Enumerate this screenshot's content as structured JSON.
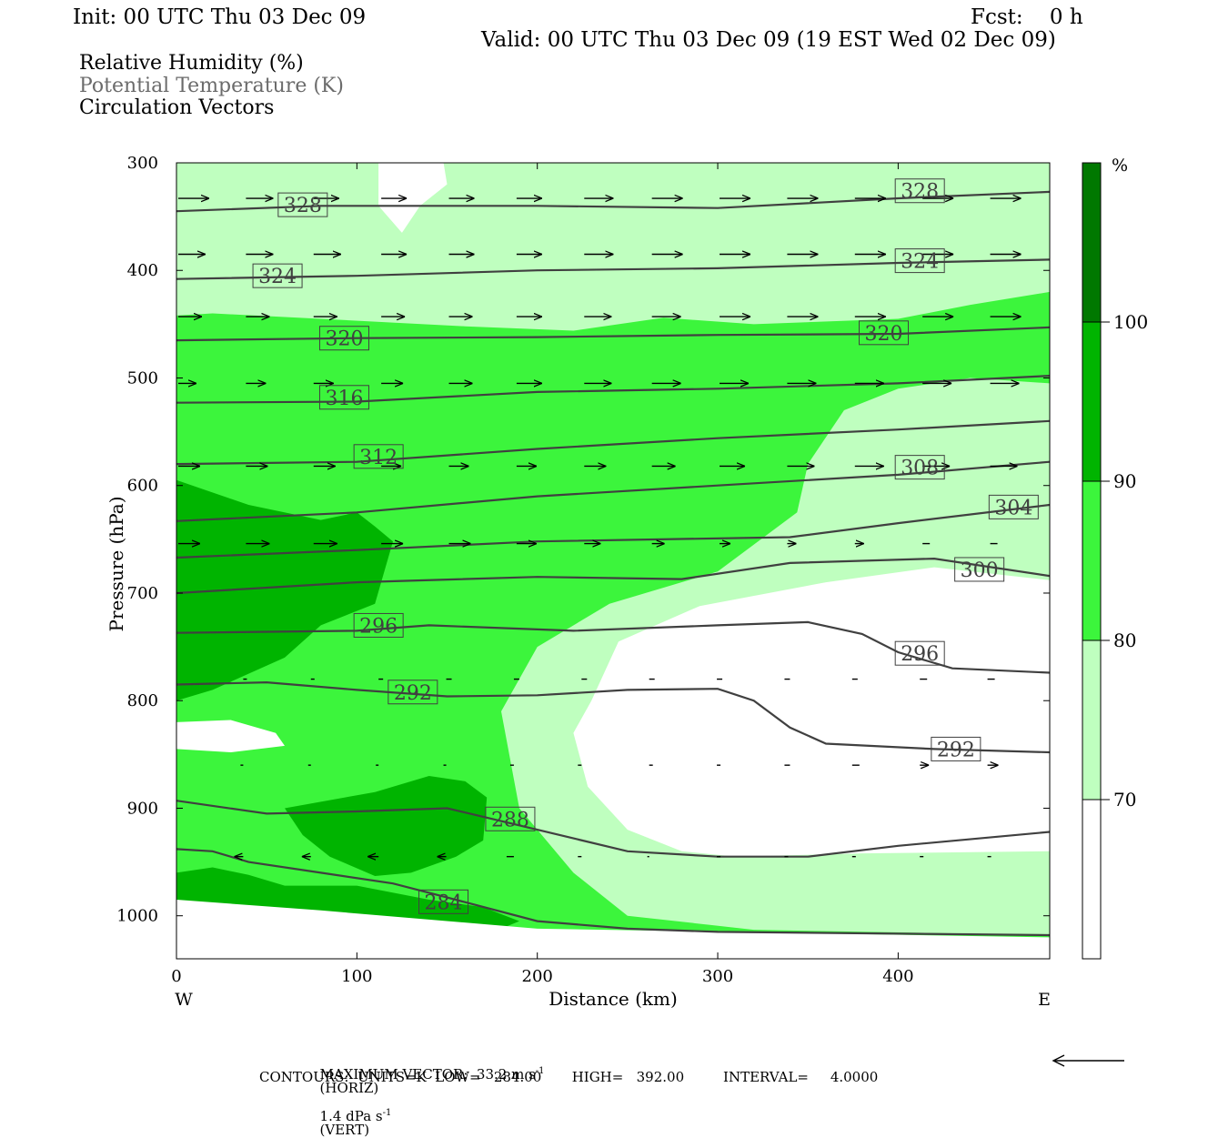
{
  "header": {
    "init": "Init: 00 UTC Thu 03 Dec 09",
    "fcst": "Fcst:    0 h",
    "valid": "Valid: 00 UTC Thu 03 Dec 09 (19 EST Wed 02 Dec 09)"
  },
  "legend_lines": [
    "Relative Humidity (%)",
    "Potential Temperature (K)",
    "Circulation Vectors"
  ],
  "footer": {
    "max_vector": "MAXIMUM VECTOR:  33.2 m s",
    "horiz": "(HORIZ)",
    "vert_val": "1.4 dPa s",
    "vert": "(VERT)",
    "exp": "-1",
    "contours": "CONTOURS:  UNITS=K  LOW=   284.00       HIGH=   392.00         INTERVAL=     4.0000"
  },
  "colors": {
    "rh_70_80": "#bfffbf",
    "rh_80_90": "#3cf53c",
    "rh_90_100": "#00b400",
    "rh_100": "#007800",
    "contour": "#404040",
    "vector": "#000000"
  },
  "chart_data": {
    "type": "heatmap",
    "xlabel": "Distance (km)",
    "ylabel": "Pressure (hPa)",
    "xlim": [
      0,
      484
    ],
    "ylim": [
      1040,
      300
    ],
    "x_ticks": [
      0,
      100,
      200,
      300,
      400
    ],
    "y_ticks": [
      300,
      400,
      500,
      600,
      700,
      800,
      900,
      1000
    ],
    "x_end_labels": {
      "left": "W",
      "right": "E"
    },
    "colorbar": {
      "unit": "%",
      "levels": [
        70,
        80,
        90,
        100
      ],
      "level_labels": [
        "70",
        "80",
        "90",
        "100"
      ]
    },
    "rh_regions": [
      {
        "level": 70,
        "points": [
          [
            0,
            300
          ],
          [
            484,
            300
          ],
          [
            484,
            1020
          ],
          [
            0,
            1020
          ]
        ]
      },
      {
        "level": 80,
        "points": [
          [
            0,
            442
          ],
          [
            20,
            440
          ],
          [
            80,
            445
          ],
          [
            160,
            452
          ],
          [
            220,
            456
          ],
          [
            270,
            444
          ],
          [
            320,
            450
          ],
          [
            400,
            445
          ],
          [
            440,
            432
          ],
          [
            484,
            420
          ],
          [
            484,
            505
          ],
          [
            440,
            500
          ],
          [
            400,
            510
          ],
          [
            370,
            530
          ],
          [
            350,
            580
          ],
          [
            344,
            625
          ],
          [
            300,
            680
          ],
          [
            240,
            710
          ],
          [
            200,
            750
          ],
          [
            180,
            810
          ],
          [
            190,
            900
          ],
          [
            220,
            960
          ],
          [
            250,
            1000
          ],
          [
            320,
            1013
          ],
          [
            484,
            1018
          ],
          [
            484,
            1030
          ],
          [
            0,
            1030
          ]
        ]
      },
      {
        "level": 90,
        "points": [
          [
            0,
            595
          ],
          [
            40,
            618
          ],
          [
            80,
            632
          ],
          [
            100,
            625
          ],
          [
            110,
            638
          ],
          [
            120,
            652
          ],
          [
            110,
            710
          ],
          [
            80,
            730
          ],
          [
            60,
            760
          ],
          [
            20,
            790
          ],
          [
            0,
            800
          ]
        ]
      },
      {
        "level": 90,
        "points": [
          [
            60,
            900
          ],
          [
            110,
            885
          ],
          [
            140,
            870
          ],
          [
            160,
            875
          ],
          [
            172,
            890
          ],
          [
            170,
            930
          ],
          [
            155,
            945
          ],
          [
            130,
            960
          ],
          [
            110,
            963
          ],
          [
            85,
            945
          ],
          [
            70,
            925
          ]
        ]
      },
      {
        "level": 90,
        "points": [
          [
            0,
            960
          ],
          [
            20,
            955
          ],
          [
            40,
            962
          ],
          [
            60,
            972
          ],
          [
            100,
            972
          ],
          [
            140,
            985
          ],
          [
            170,
            992
          ],
          [
            190,
            1005
          ],
          [
            180,
            1012
          ],
          [
            100,
            1008
          ],
          [
            40,
            1000
          ],
          [
            0,
            990
          ]
        ]
      }
    ],
    "rh_clear": [
      [
        [
          112,
          300
        ],
        [
          148,
          300
        ],
        [
          150,
          320
        ],
        [
          135,
          340
        ],
        [
          125,
          365
        ],
        [
          112,
          340
        ]
      ],
      [
        [
          0,
          820
        ],
        [
          30,
          818
        ],
        [
          55,
          830
        ],
        [
          60,
          842
        ],
        [
          30,
          848
        ],
        [
          0,
          845
        ]
      ],
      [
        [
          0,
          985
        ],
        [
          80,
          995
        ],
        [
          200,
          1012
        ],
        [
          484,
          1020
        ],
        [
          484,
          1040
        ],
        [
          0,
          1040
        ]
      ],
      [
        [
          484,
          688
        ],
        [
          420,
          676
        ],
        [
          360,
          690
        ],
        [
          290,
          712
        ],
        [
          245,
          745
        ],
        [
          230,
          800
        ],
        [
          220,
          830
        ],
        [
          228,
          880
        ],
        [
          250,
          920
        ],
        [
          280,
          940
        ],
        [
          310,
          945
        ],
        [
          380,
          942
        ],
        [
          484,
          940
        ]
      ]
    ],
    "theta_contours": [
      {
        "value": 328,
        "points": [
          [
            0,
            345
          ],
          [
            80,
            340
          ],
          [
            200,
            340
          ],
          [
            300,
            342
          ],
          [
            400,
            333
          ],
          [
            484,
            327
          ]
        ],
        "label_at": [
          [
            70,
            339
          ],
          [
            412,
            326
          ]
        ]
      },
      {
        "value": 324,
        "points": [
          [
            0,
            408
          ],
          [
            100,
            405
          ],
          [
            200,
            400
          ],
          [
            300,
            398
          ],
          [
            400,
            393
          ],
          [
            484,
            390
          ]
        ],
        "label_at": [
          [
            56,
            405
          ],
          [
            412,
            391
          ]
        ]
      },
      {
        "value": 320,
        "points": [
          [
            0,
            465
          ],
          [
            100,
            463
          ],
          [
            200,
            462
          ],
          [
            300,
            460
          ],
          [
            400,
            459
          ],
          [
            484,
            453
          ]
        ],
        "label_at": [
          [
            93,
            463
          ],
          [
            392,
            458
          ]
        ]
      },
      {
        "value": 316,
        "points": [
          [
            0,
            523
          ],
          [
            100,
            522
          ],
          [
            200,
            513
          ],
          [
            300,
            510
          ],
          [
            400,
            505
          ],
          [
            484,
            498
          ]
        ],
        "label_at": [
          [
            93,
            518
          ]
        ]
      },
      {
        "value": 312,
        "points": [
          [
            0,
            580
          ],
          [
            100,
            578
          ],
          [
            200,
            566
          ],
          [
            300,
            556
          ],
          [
            400,
            548
          ],
          [
            484,
            540
          ]
        ],
        "label_at": [
          [
            112,
            573
          ]
        ]
      },
      {
        "value": 308,
        "points": [
          [
            0,
            633
          ],
          [
            100,
            625
          ],
          [
            200,
            610
          ],
          [
            300,
            600
          ],
          [
            400,
            590
          ],
          [
            484,
            578
          ]
        ],
        "label_at": [
          [
            412,
            583
          ]
        ]
      },
      {
        "value": 304,
        "points": [
          [
            0,
            667
          ],
          [
            100,
            660
          ],
          [
            200,
            652
          ],
          [
            340,
            648
          ],
          [
            400,
            635
          ],
          [
            484,
            618
          ]
        ],
        "label_at": [
          [
            464,
            620
          ]
        ]
      },
      {
        "value": 300,
        "points": [
          [
            0,
            700
          ],
          [
            100,
            690
          ],
          [
            200,
            685
          ],
          [
            280,
            687
          ],
          [
            340,
            672
          ],
          [
            420,
            668
          ],
          [
            484,
            684
          ]
        ],
        "label_at": [
          [
            445,
            678
          ]
        ]
      },
      {
        "value": 296,
        "points": [
          [
            0,
            737
          ],
          [
            100,
            735
          ],
          [
            140,
            730
          ],
          [
            220,
            735
          ],
          [
            300,
            730
          ],
          [
            350,
            727
          ],
          [
            380,
            738
          ],
          [
            400,
            755
          ],
          [
            430,
            770
          ],
          [
            484,
            774
          ]
        ],
        "label_at": [
          [
            112,
            730
          ],
          [
            412,
            756
          ]
        ]
      },
      {
        "value": 292,
        "points": [
          [
            0,
            785
          ],
          [
            50,
            783
          ],
          [
            100,
            790
          ],
          [
            150,
            796
          ],
          [
            200,
            795
          ],
          [
            250,
            790
          ],
          [
            300,
            789
          ],
          [
            320,
            800
          ],
          [
            340,
            825
          ],
          [
            360,
            840
          ],
          [
            420,
            845
          ],
          [
            484,
            848
          ]
        ],
        "label_at": [
          [
            131,
            792
          ],
          [
            432,
            845
          ]
        ]
      },
      {
        "value": 288,
        "points": [
          [
            0,
            893
          ],
          [
            50,
            905
          ],
          [
            100,
            903
          ],
          [
            150,
            900
          ],
          [
            200,
            920
          ],
          [
            250,
            940
          ],
          [
            300,
            945
          ],
          [
            350,
            945
          ],
          [
            400,
            935
          ],
          [
            484,
            922
          ]
        ],
        "label_at": [
          [
            185,
            910
          ]
        ]
      },
      {
        "value": 284,
        "points": [
          [
            0,
            938
          ],
          [
            20,
            940
          ],
          [
            40,
            950
          ],
          [
            80,
            960
          ],
          [
            120,
            970
          ],
          [
            150,
            983
          ],
          [
            200,
            1005
          ],
          [
            250,
            1012
          ],
          [
            300,
            1015
          ],
          [
            484,
            1018
          ]
        ],
        "label_at": [
          [
            148,
            987
          ]
        ]
      }
    ],
    "vector_rows": [
      {
        "p": 333,
        "x_start": 0,
        "dx": 37.5,
        "lengths": [
          34,
          30,
          28,
          28,
          28,
          28,
          32,
          34,
          34,
          34,
          34,
          34,
          34
        ]
      },
      {
        "p": 385,
        "x_start": 0,
        "dx": 37.5,
        "lengths": [
          30,
          30,
          30,
          28,
          28,
          28,
          32,
          34,
          34,
          34,
          34,
          34,
          34
        ]
      },
      {
        "p": 443,
        "x_start": 0,
        "dx": 37.5,
        "lengths": [
          26,
          26,
          26,
          26,
          26,
          28,
          30,
          32,
          34,
          34,
          34,
          34,
          34
        ]
      },
      {
        "p": 505,
        "x_start": 0,
        "dx": 37.5,
        "lengths": [
          20,
          22,
          22,
          24,
          26,
          28,
          30,
          32,
          32,
          32,
          32,
          32,
          32
        ]
      },
      {
        "p": 582,
        "x_start": 0,
        "dx": 37.5,
        "lengths": [
          24,
          24,
          24,
          22,
          22,
          22,
          24,
          26,
          28,
          30,
          32,
          30,
          30
        ]
      },
      {
        "p": 654,
        "x_start": 0,
        "dx": 37.5,
        "lengths": [
          24,
          26,
          26,
          24,
          24,
          22,
          18,
          14,
          12,
          10,
          10,
          8,
          8
        ]
      },
      {
        "p": 780,
        "x_start": 36,
        "dx": 37.5,
        "lengths": [
          4,
          4,
          5,
          6,
          6,
          6,
          6,
          6,
          6,
          6,
          8,
          8,
          8
        ]
      },
      {
        "p": 860,
        "x_start": 36,
        "dx": 37.5,
        "lengths": [
          -3,
          -3,
          -3,
          -3,
          -4,
          -4,
          4,
          4,
          6,
          8,
          10,
          12,
          14
        ]
      },
      {
        "p": 945,
        "x_start": 36,
        "dx": 37.5,
        "lengths": [
          -10,
          -10,
          -12,
          -10,
          -8,
          -4,
          -2,
          4,
          4,
          4,
          4,
          4,
          4
        ]
      }
    ],
    "vector_reference": {
      "horiz_ms": 33.2,
      "vert_dpas": 1.4
    }
  }
}
